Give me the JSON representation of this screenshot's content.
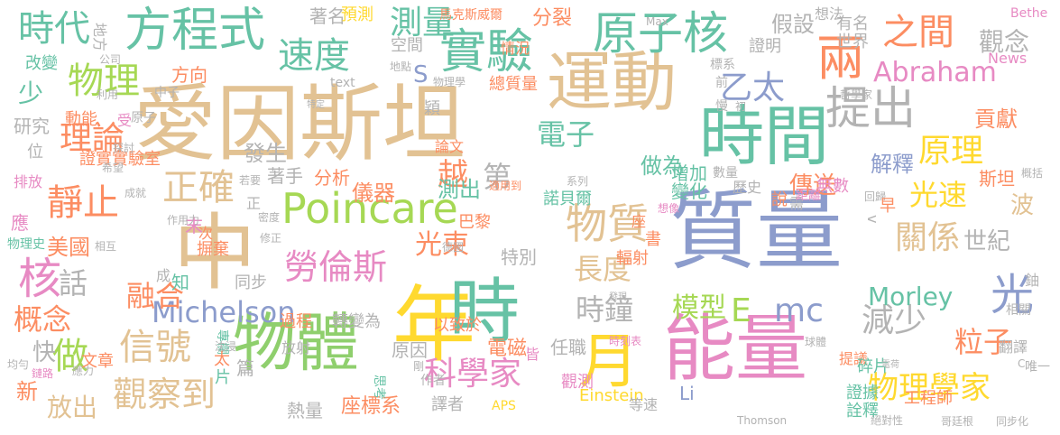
{
  "palette": {
    "tan": "#e2c293",
    "green": "#8fcf6d",
    "blue": "#8c9ccc",
    "teal": "#66c2a5",
    "orange": "#fc8d62",
    "pink": "#e78ac3",
    "yellow": "#ffd92f",
    "gray": "#b3b3b3",
    "lime": "#a6d854"
  },
  "words": [
    {
      "text": "愛因斯坦",
      "color": "tan"
    },
    {
      "text": "質量",
      "color": "blue"
    },
    {
      "text": "時間",
      "color": "teal"
    },
    {
      "text": "運動",
      "color": "tan"
    },
    {
      "text": "能量",
      "color": "pink"
    },
    {
      "text": "中",
      "color": "tan"
    },
    {
      "text": "年",
      "color": "yellow"
    },
    {
      "text": "時",
      "color": "teal"
    },
    {
      "text": "物體",
      "color": "green"
    },
    {
      "text": "月",
      "color": "yellow"
    },
    {
      "text": "方程式",
      "color": "teal"
    },
    {
      "text": "實驗",
      "color": "teal"
    },
    {
      "text": "原子核",
      "color": "teal"
    },
    {
      "text": "兩",
      "color": "orange"
    },
    {
      "text": "提出",
      "color": "gray"
    },
    {
      "text": "Poincare",
      "color": "lime"
    },
    {
      "text": "物質",
      "color": "tan"
    },
    {
      "text": "時代",
      "color": "teal"
    },
    {
      "text": "速度",
      "color": "teal"
    },
    {
      "text": "測量",
      "color": "teal"
    },
    {
      "text": "之間",
      "color": "orange"
    },
    {
      "text": "物理",
      "color": "lime"
    },
    {
      "text": "乙太",
      "color": "blue"
    },
    {
      "text": "Abraham",
      "color": "pink"
    },
    {
      "text": "原理",
      "color": "yellow"
    },
    {
      "text": "光",
      "color": "blue"
    },
    {
      "text": "核",
      "color": "pink"
    },
    {
      "text": "靜止",
      "color": "orange"
    },
    {
      "text": "正確",
      "color": "tan"
    },
    {
      "text": "理論",
      "color": "orange"
    },
    {
      "text": "勞倫斯",
      "color": "pink"
    },
    {
      "text": "信號",
      "color": "tan"
    },
    {
      "text": "觀察到",
      "color": "tan"
    },
    {
      "text": "做",
      "color": "lime"
    },
    {
      "text": "科學家",
      "color": "pink"
    },
    {
      "text": "物理學家",
      "color": "yellow"
    },
    {
      "text": "減少",
      "color": "gray"
    },
    {
      "text": "關係",
      "color": "tan"
    },
    {
      "text": "光速",
      "color": "yellow"
    },
    {
      "text": "Michelson",
      "color": "blue"
    },
    {
      "text": "時鐘",
      "color": "gray"
    },
    {
      "text": "模型",
      "color": "lime"
    },
    {
      "text": "E",
      "color": "lime"
    },
    {
      "text": "mc",
      "color": "blue"
    },
    {
      "text": "長度",
      "color": "tan"
    },
    {
      "text": "融合",
      "color": "orange"
    },
    {
      "text": "概念",
      "color": "orange"
    },
    {
      "text": "話",
      "color": "gray"
    },
    {
      "text": "電子",
      "color": "teal"
    },
    {
      "text": "越",
      "color": "orange"
    },
    {
      "text": "光束",
      "color": "orange"
    },
    {
      "text": "Morley",
      "color": "teal"
    },
    {
      "text": "粒子",
      "color": "orange"
    },
    {
      "text": "傳送",
      "color": "orange"
    },
    {
      "text": "觀念",
      "color": "gray"
    },
    {
      "text": "假設",
      "color": "gray"
    },
    {
      "text": "少",
      "color": "teal"
    },
    {
      "text": "世紀",
      "color": "gray"
    },
    {
      "text": "儀器",
      "color": "orange"
    },
    {
      "text": "測出",
      "color": "teal"
    },
    {
      "text": "做為",
      "color": "teal"
    },
    {
      "text": "分裂",
      "color": "orange"
    },
    {
      "text": "第",
      "color": "gray"
    },
    {
      "text": "貢獻",
      "color": "orange"
    },
    {
      "text": "解釋",
      "color": "blue"
    },
    {
      "text": "S",
      "color": "blue"
    },
    {
      "text": "著名",
      "color": "gray"
    },
    {
      "text": "預測",
      "color": "yellow"
    },
    {
      "text": "馬克斯威爾",
      "color": "orange"
    },
    {
      "text": "Einstein",
      "color": "yellow"
    },
    {
      "text": "放出",
      "color": "tan"
    },
    {
      "text": "座標系",
      "color": "orange"
    },
    {
      "text": "熱量",
      "color": "gray"
    },
    {
      "text": "美國",
      "color": "orange"
    },
    {
      "text": "發生",
      "color": "gray"
    },
    {
      "text": "方向",
      "color": "orange"
    },
    {
      "text": "研究",
      "color": "gray"
    },
    {
      "text": "地方",
      "color": "gray"
    },
    {
      "text": "改變",
      "color": "teal"
    },
    {
      "text": "動能",
      "color": "orange"
    },
    {
      "text": "證實實驗室",
      "color": "orange"
    },
    {
      "text": "排放",
      "color": "pink"
    },
    {
      "text": "快",
      "color": "gray"
    },
    {
      "text": "新",
      "color": "orange"
    },
    {
      "text": "增加",
      "color": "teal"
    },
    {
      "text": "變化",
      "color": "teal"
    },
    {
      "text": "特別",
      "color": "gray"
    },
    {
      "text": "同步",
      "color": "gray"
    },
    {
      "text": "過程",
      "color": "orange"
    },
    {
      "text": "轉變為",
      "color": "gray"
    },
    {
      "text": "著手",
      "color": "gray"
    },
    {
      "text": "分析",
      "color": "orange"
    },
    {
      "text": "電磁",
      "color": "orange"
    },
    {
      "text": "任職",
      "color": "gray"
    },
    {
      "text": "原因",
      "color": "gray"
    },
    {
      "text": "以致於",
      "color": "orange"
    },
    {
      "text": "譯者",
      "color": "gray"
    },
    {
      "text": "等速",
      "color": "gray"
    },
    {
      "text": "APS",
      "color": "yellow"
    },
    {
      "text": "工程師",
      "color": "orange"
    },
    {
      "text": "證據",
      "color": "teal"
    },
    {
      "text": "詮釋",
      "color": "teal"
    },
    {
      "text": "提議",
      "color": "orange"
    },
    {
      "text": "碎片",
      "color": "teal"
    },
    {
      "text": "斯坦",
      "color": "orange"
    },
    {
      "text": "無數",
      "color": "pink"
    },
    {
      "text": "波",
      "color": "tan"
    },
    {
      "text": "Li",
      "color": "blue"
    },
    {
      "text": "Bethe",
      "color": "pink"
    },
    {
      "text": "News",
      "color": "pink"
    },
    {
      "text": "有名",
      "color": "gray"
    },
    {
      "text": "想法",
      "color": "gray"
    },
    {
      "text": "證明",
      "color": "gray"
    },
    {
      "text": "世界",
      "color": "gray"
    },
    {
      "text": "空間",
      "color": "gray"
    },
    {
      "text": "情況",
      "color": "orange"
    },
    {
      "text": "總質量",
      "color": "orange"
    },
    {
      "text": "物理學",
      "color": "gray"
    },
    {
      "text": "text",
      "color": "gray"
    },
    {
      "text": "穎",
      "color": "gray"
    },
    {
      "text": "論文",
      "color": "orange"
    },
    {
      "text": "諾貝爾",
      "color": "teal"
    },
    {
      "text": "巴黎",
      "color": "orange"
    },
    {
      "text": "書",
      "color": "orange"
    },
    {
      "text": "輻射",
      "color": "orange"
    },
    {
      "text": "座",
      "color": "orange"
    },
    {
      "text": "篇",
      "color": "gray"
    },
    {
      "text": "摒棄",
      "color": "orange"
    },
    {
      "text": "知",
      "color": "teal"
    },
    {
      "text": "成",
      "color": "gray"
    },
    {
      "text": "末",
      "color": "pink"
    },
    {
      "text": "次",
      "color": "orange"
    },
    {
      "text": "正",
      "color": "gray"
    },
    {
      "text": "放射",
      "color": "gray"
    },
    {
      "text": "觀測",
      "color": "pink"
    },
    {
      "text": "皆",
      "color": "pink"
    },
    {
      "text": "思考",
      "color": "teal"
    },
    {
      "text": "作者",
      "color": "gray"
    },
    {
      "text": "文章",
      "color": "orange"
    },
    {
      "text": "專欄",
      "color": "teal"
    },
    {
      "text": "太",
      "color": "orange"
    },
    {
      "text": "片",
      "color": "teal"
    },
    {
      "text": "應",
      "color": "pink"
    },
    {
      "text": "位",
      "color": "gray"
    },
    {
      "text": "受",
      "color": "pink"
    },
    {
      "text": "原子",
      "color": "gray"
    },
    {
      "text": "中子",
      "color": "gray"
    },
    {
      "text": "物理史",
      "color": "teal"
    },
    {
      "text": "Thomson",
      "color": "gray"
    },
    {
      "text": "Max",
      "color": "gray"
    },
    {
      "text": "標系",
      "color": "gray"
    },
    {
      "text": "前",
      "color": "gray"
    },
    {
      "text": "慢",
      "color": "gray"
    },
    {
      "text": "歷史",
      "color": "gray"
    },
    {
      "text": "說",
      "color": "orange"
    },
    {
      "text": "需",
      "color": "gray"
    },
    {
      "text": "距離",
      "color": "pink"
    },
    {
      "text": "翻譯",
      "color": "gray"
    },
    {
      "text": "相關",
      "color": "gray"
    },
    {
      "text": "鈾",
      "color": "gray"
    },
    {
      "text": "唯一",
      "color": "gray"
    },
    {
      "text": "同步化",
      "color": "gray"
    },
    {
      "text": "哥廷根",
      "color": "gray"
    },
    {
      "text": "絕對性",
      "color": "gray"
    },
    {
      "text": "電荷",
      "color": "gray"
    },
    {
      "text": "球體",
      "color": "gray"
    },
    {
      "text": "發現",
      "color": "gray"
    },
    {
      "text": "時刻表",
      "color": "pink"
    },
    {
      "text": "系列",
      "color": "gray"
    },
    {
      "text": "數量",
      "color": "gray"
    },
    {
      "text": "適用到",
      "color": "orange"
    },
    {
      "text": "想像",
      "color": "pink"
    },
    {
      "text": "修正",
      "color": "gray"
    },
    {
      "text": "德國",
      "color": "gray"
    },
    {
      "text": "作用力",
      "color": "gray"
    },
    {
      "text": "探討",
      "color": "gray"
    },
    {
      "text": "希望",
      "color": "gray"
    },
    {
      "text": "成就",
      "color": "gray"
    },
    {
      "text": "若要",
      "color": "gray"
    },
    {
      "text": "利用",
      "color": "gray"
    },
    {
      "text": "公司",
      "color": "gray"
    },
    {
      "text": "特定",
      "color": "gray"
    },
    {
      "text": "密度",
      "color": "gray"
    },
    {
      "text": "相互",
      "color": "gray"
    },
    {
      "text": "均勻",
      "color": "gray"
    },
    {
      "text": "鏈路",
      "color": "pink"
    },
    {
      "text": "應力",
      "color": "gray"
    },
    {
      "text": "剛",
      "color": "gray"
    },
    {
      "text": "沈浸",
      "color": "gray"
    },
    {
      "text": "哲學家",
      "color": "gray"
    },
    {
      "text": "地點",
      "color": "gray"
    },
    {
      "text": "初",
      "color": "gray"
    },
    {
      "text": "回歸",
      "color": "gray"
    },
    {
      "text": "概括",
      "color": "gray"
    },
    {
      "text": "早",
      "color": "orange"
    },
    {
      "text": "C",
      "color": "gray"
    },
    {
      "text": "v",
      "color": "gray"
    },
    {
      "text": "j",
      "color": "pink"
    }
  ]
}
